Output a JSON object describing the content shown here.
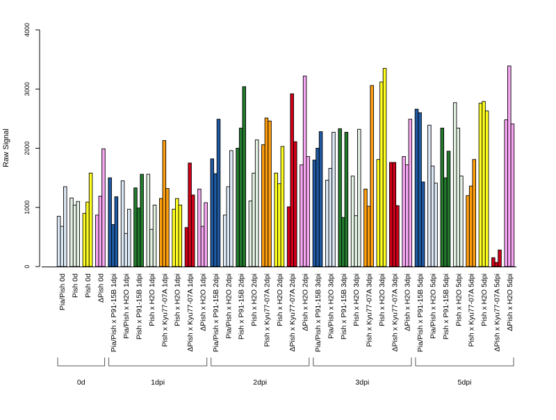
{
  "chart_data": {
    "type": "bar",
    "ylabel": "Raw Signal",
    "xlabel": "",
    "ylim": [
      0,
      4000
    ],
    "yticks": [
      0,
      1000,
      2000,
      3000,
      4000
    ],
    "bars_per_group": 3,
    "categories": [
      {
        "label": "Pia/Pish 0d",
        "color": "#dde8f6",
        "values": [
          850,
          680,
          1350
        ]
      },
      {
        "label": "Pish 0d",
        "color": "#e4f2e4",
        "values": [
          1160,
          1040,
          1100
        ]
      },
      {
        "label": "Pish 0d",
        "color": "#ffff22",
        "values": [
          900,
          1090,
          1580
        ]
      },
      {
        "label": "ΔPish 0d",
        "color": "#f7a6f2",
        "values": [
          870,
          1190,
          1990
        ]
      },
      {
        "label": "Pia/Pish x P91-15B 1dpi",
        "color": "#1f5aa3",
        "values": [
          1500,
          710,
          1180
        ]
      },
      {
        "label": "Pia/Pish x H2O 1dpi",
        "color": "#dde8f6",
        "values": [
          1450,
          560,
          970
        ]
      },
      {
        "label": "Pish x P91-15B 1dpi",
        "color": "#237a2e",
        "values": [
          1330,
          990,
          1560
        ]
      },
      {
        "label": "Pish x H2O 1dpi",
        "color": "#e4f2e4",
        "values": [
          1560,
          630,
          1040
        ]
      },
      {
        "label": "Pish x Kyu77-07A 1dpi",
        "color": "#ff9f10",
        "values": [
          1150,
          2130,
          1320
        ]
      },
      {
        "label": "Pish x H2O 1dpi",
        "color": "#ffff22",
        "values": [
          970,
          1150,
          1040
        ]
      },
      {
        "label": "ΔPish x Kyu77-07A 1dpi",
        "color": "#d0001a",
        "values": [
          660,
          1750,
          1210
        ]
      },
      {
        "label": "ΔPish x H2O 1dpi",
        "color": "#f7a6f2",
        "values": [
          1310,
          680,
          1080
        ]
      },
      {
        "label": "Pia/Pish x P91-15B 2dpi",
        "color": "#1f5aa3",
        "values": [
          1820,
          1570,
          2490
        ]
      },
      {
        "label": "Pia/Pish x H2O 2dpi",
        "color": "#dde8f6",
        "values": [
          870,
          1350,
          1960
        ]
      },
      {
        "label": "Pish x P91-15B 2dpi",
        "color": "#237a2e",
        "values": [
          2000,
          2340,
          3040
        ]
      },
      {
        "label": "Pish x H2O 2dpi",
        "color": "#e4f2e4",
        "values": [
          1110,
          1580,
          2140
        ]
      },
      {
        "label": "Pish x Kyu77-07A 2dpi",
        "color": "#ff9f10",
        "values": [
          2060,
          2510,
          2460
        ]
      },
      {
        "label": "Pish x H2O 2dpi",
        "color": "#ffff22",
        "values": [
          1580,
          1400,
          2030
        ]
      },
      {
        "label": "ΔPish x Kyu77-07A 2dpi",
        "color": "#d0001a",
        "values": [
          1010,
          2920,
          2110
        ]
      },
      {
        "label": "ΔPish x H2O 2dpi",
        "color": "#f7a6f2",
        "values": [
          1720,
          3220,
          1860
        ]
      },
      {
        "label": "Pia/Pish x P91-15B 3dpi",
        "color": "#1f5aa3",
        "values": [
          1800,
          2000,
          2280
        ]
      },
      {
        "label": "Pia/Pish x H2O 3dpi",
        "color": "#dde8f6",
        "values": [
          1460,
          1660,
          2270
        ]
      },
      {
        "label": "Pish x P91-15B 3dpi",
        "color": "#237a2e",
        "values": [
          2330,
          830,
          2270
        ]
      },
      {
        "label": "Pish x H2O 3dpi",
        "color": "#e4f2e4",
        "values": [
          1530,
          860,
          2320
        ]
      },
      {
        "label": "Pish x Kyu77-07A 3dpi",
        "color": "#ff9f10",
        "values": [
          1310,
          1020,
          3060
        ]
      },
      {
        "label": "Pish x H2O 3dpi",
        "color": "#ffff22",
        "values": [
          1810,
          3120,
          3350
        ]
      },
      {
        "label": "ΔPish x Kyu77-07A 3dpi",
        "color": "#d0001a",
        "values": [
          1760,
          1760,
          1030
        ]
      },
      {
        "label": "ΔPish x H2O 3dpi",
        "color": "#f7a6f2",
        "values": [
          1860,
          1720,
          2490
        ]
      },
      {
        "label": "Pia/Pish x P91-15B 5dpi",
        "color": "#1f5aa3",
        "values": [
          2660,
          2600,
          1430
        ]
      },
      {
        "label": "Pia/Pish x H2O 5dpi",
        "color": "#dde8f6",
        "values": [
          2390,
          1700,
          1410
        ]
      },
      {
        "label": "Pish x P91-15B 5dpi",
        "color": "#237a2e",
        "values": [
          2340,
          1500,
          1950
        ]
      },
      {
        "label": "Pish x H2O 5dpi",
        "color": "#e4f2e4",
        "values": [
          2770,
          2340,
          1530
        ]
      },
      {
        "label": "Pish x Kyu77-07A 5dpi",
        "color": "#ff9f10",
        "values": [
          1200,
          1360,
          1810
        ]
      },
      {
        "label": "Pish x H2O 5dpi",
        "color": "#ffff22",
        "values": [
          2760,
          2790,
          2630
        ]
      },
      {
        "label": "ΔPish x Kyu77-07A 5dpi",
        "color": "#d0001a",
        "values": [
          150,
          70,
          280
        ]
      },
      {
        "label": "ΔPish x H2O 5dpi",
        "color": "#f7a6f2",
        "values": [
          2480,
          3390,
          2410
        ]
      }
    ],
    "groups": [
      {
        "label": "0d",
        "first": 0,
        "last": 3
      },
      {
        "label": "1dpi",
        "first": 4,
        "last": 11
      },
      {
        "label": "2dpi",
        "first": 12,
        "last": 19
      },
      {
        "label": "3dpi",
        "first": 20,
        "last": 27
      },
      {
        "label": "5dpi",
        "first": 28,
        "last": 35
      }
    ]
  }
}
